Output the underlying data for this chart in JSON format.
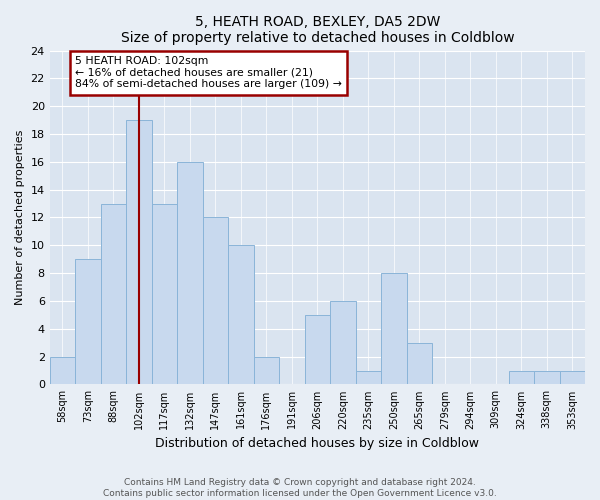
{
  "title1": "5, HEATH ROAD, BEXLEY, DA5 2DW",
  "title2": "Size of property relative to detached houses in Coldblow",
  "xlabel": "Distribution of detached houses by size in Coldblow",
  "ylabel": "Number of detached properties",
  "categories": [
    "58sqm",
    "73sqm",
    "88sqm",
    "102sqm",
    "117sqm",
    "132sqm",
    "147sqm",
    "161sqm",
    "176sqm",
    "191sqm",
    "206sqm",
    "220sqm",
    "235sqm",
    "250sqm",
    "265sqm",
    "279sqm",
    "294sqm",
    "309sqm",
    "324sqm",
    "338sqm",
    "353sqm"
  ],
  "values": [
    2,
    9,
    13,
    19,
    13,
    16,
    12,
    10,
    2,
    0,
    5,
    6,
    1,
    8,
    3,
    0,
    0,
    0,
    1,
    1,
    1
  ],
  "bar_color": "#c8d9ee",
  "bar_edge_color": "#8ab4d8",
  "highlight_index": 3,
  "highlight_line_color": "#990000",
  "annotation_line1": "5 HEATH ROAD: 102sqm",
  "annotation_line2": "← 16% of detached houses are smaller (21)",
  "annotation_line3": "84% of semi-detached houses are larger (109) →",
  "annotation_box_color": "#990000",
  "ylim": [
    0,
    24
  ],
  "yticks": [
    0,
    2,
    4,
    6,
    8,
    10,
    12,
    14,
    16,
    18,
    20,
    22,
    24
  ],
  "footer1": "Contains HM Land Registry data © Crown copyright and database right 2024.",
  "footer2": "Contains public sector information licensed under the Open Government Licence v3.0.",
  "bg_color": "#e8eef5",
  "plot_bg_color": "#dae4f0"
}
